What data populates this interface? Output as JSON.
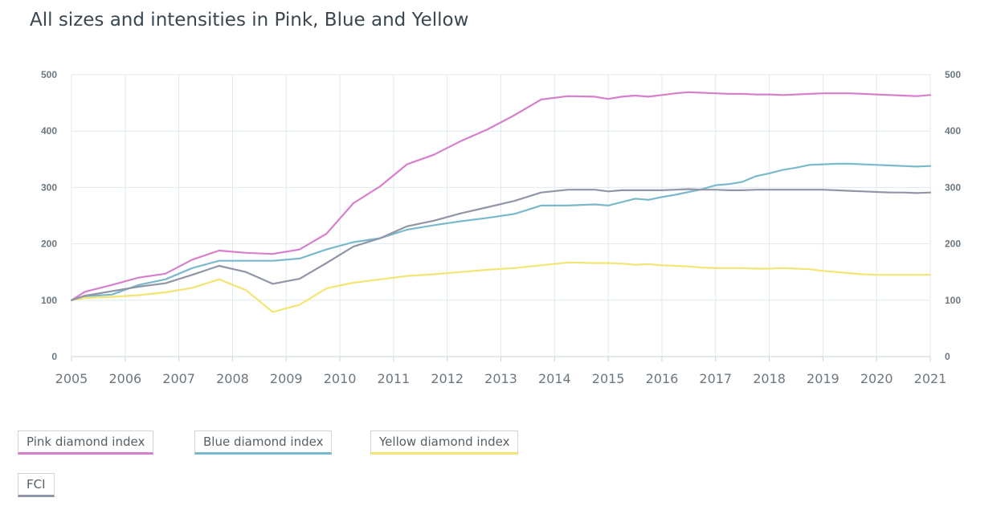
{
  "title": "All sizes and intensities in Pink, Blue and Yellow",
  "chart_data": {
    "type": "line",
    "title": "All sizes and intensities in Pink, Blue and Yellow",
    "xlabel": "",
    "ylabel": "",
    "xlim": [
      2005,
      2021
    ],
    "ylim": [
      0,
      500
    ],
    "x_ticks": [
      "2005",
      "2006",
      "2007",
      "2008",
      "2009",
      "2010",
      "2011",
      "2012",
      "2013",
      "2014",
      "2015",
      "2016",
      "2017",
      "2018",
      "2019",
      "2020",
      "2021"
    ],
    "y_ticks": [
      "0",
      "100",
      "200",
      "300",
      "400",
      "500"
    ],
    "y_axis_right": true,
    "grid": true,
    "legend_position": "bottom-left",
    "series": [
      {
        "name": "Pink diamond index",
        "color": "#d77fcd",
        "x": [
          2005,
          2005.25,
          2005.75,
          2006.25,
          2006.75,
          2007.25,
          2007.75,
          2008.25,
          2008.75,
          2009.25,
          2009.75,
          2010.25,
          2010.75,
          2011.25,
          2011.75,
          2012.25,
          2012.75,
          2013.25,
          2013.75,
          2014.25,
          2014.75,
          2015.0,
          2015.25,
          2015.5,
          2015.75,
          2016.0,
          2016.25,
          2016.5,
          2016.75,
          2017.0,
          2017.25,
          2017.5,
          2017.75,
          2018.0,
          2018.25,
          2018.5,
          2018.75,
          2019.0,
          2019.25,
          2019.5,
          2019.75,
          2020.0,
          2020.25,
          2020.5,
          2020.75,
          2021
        ],
        "values": [
          100,
          115,
          127,
          140,
          147,
          172,
          188,
          184,
          182,
          190,
          218,
          272,
          302,
          341,
          358,
          382,
          403,
          428,
          456,
          462,
          461,
          457,
          461,
          463,
          461,
          464,
          467,
          469,
          468,
          467,
          466,
          466,
          465,
          465,
          464,
          465,
          466,
          467,
          467,
          467,
          466,
          465,
          464,
          463,
          462,
          464
        ]
      },
      {
        "name": "Blue diamond index",
        "color": "#7ab9cc",
        "x": [
          2005,
          2005.25,
          2005.75,
          2006.25,
          2006.75,
          2007.25,
          2007.75,
          2008.25,
          2008.75,
          2009.25,
          2009.75,
          2010.25,
          2010.75,
          2011.25,
          2011.75,
          2012.25,
          2012.75,
          2013.25,
          2013.75,
          2014.25,
          2014.75,
          2015.0,
          2015.25,
          2015.5,
          2015.75,
          2016.0,
          2016.25,
          2016.5,
          2016.75,
          2017.0,
          2017.25,
          2017.5,
          2017.75,
          2018.0,
          2018.25,
          2018.5,
          2018.75,
          2019.0,
          2019.25,
          2019.5,
          2019.75,
          2020.0,
          2020.25,
          2020.5,
          2020.75,
          2021
        ],
        "values": [
          100,
          107,
          110,
          127,
          137,
          157,
          170,
          170,
          170,
          174,
          190,
          203,
          210,
          225,
          233,
          240,
          246,
          253,
          268,
          268,
          270,
          268,
          274,
          280,
          278,
          283,
          287,
          292,
          297,
          304,
          306,
          310,
          320,
          325,
          331,
          335,
          340,
          341,
          342,
          342,
          341,
          340,
          339,
          338,
          337,
          338
        ]
      },
      {
        "name": "Yellow diamond index",
        "color": "#f3e572",
        "x": [
          2005,
          2005.25,
          2005.75,
          2006.25,
          2006.75,
          2007.25,
          2007.75,
          2008.25,
          2008.75,
          2009.25,
          2009.75,
          2010.25,
          2010.75,
          2011.25,
          2011.75,
          2012.25,
          2012.75,
          2013.25,
          2013.75,
          2014.25,
          2014.75,
          2015.0,
          2015.25,
          2015.5,
          2015.75,
          2016.0,
          2016.25,
          2016.5,
          2016.75,
          2017.0,
          2017.25,
          2017.5,
          2017.75,
          2018.0,
          2018.25,
          2018.5,
          2018.75,
          2019.0,
          2019.25,
          2019.5,
          2019.75,
          2020.0,
          2020.25,
          2020.5,
          2020.75,
          2021
        ],
        "values": [
          100,
          104,
          106,
          109,
          114,
          122,
          137,
          118,
          79,
          92,
          121,
          131,
          137,
          143,
          146,
          150,
          154,
          157,
          162,
          167,
          166,
          166,
          165,
          163,
          164,
          162,
          161,
          160,
          158,
          157,
          157,
          157,
          156,
          156,
          157,
          156,
          155,
          152,
          150,
          148,
          146,
          145,
          145,
          145,
          145,
          145
        ]
      },
      {
        "name": "FCI",
        "color": "#9096a6",
        "x": [
          2005,
          2005.25,
          2005.75,
          2006.25,
          2006.75,
          2007.25,
          2007.75,
          2008.25,
          2008.75,
          2009.25,
          2009.75,
          2010.25,
          2010.75,
          2011.25,
          2011.75,
          2012.25,
          2012.75,
          2013.25,
          2013.75,
          2014.25,
          2014.75,
          2015.0,
          2015.25,
          2015.5,
          2015.75,
          2016.0,
          2016.25,
          2016.5,
          2016.75,
          2017.0,
          2017.25,
          2017.5,
          2017.75,
          2018.0,
          2018.25,
          2018.5,
          2018.75,
          2019.0,
          2019.25,
          2019.5,
          2019.75,
          2020.0,
          2020.25,
          2020.5,
          2020.75,
          2021
        ],
        "values": [
          100,
          108,
          116,
          124,
          130,
          145,
          161,
          150,
          129,
          138,
          166,
          195,
          210,
          231,
          241,
          254,
          265,
          276,
          291,
          296,
          296,
          293,
          295,
          295,
          295,
          295,
          296,
          297,
          296,
          296,
          295,
          295,
          296,
          296,
          296,
          296,
          296,
          296,
          295,
          294,
          293,
          292,
          291,
          291,
          290,
          291
        ]
      }
    ]
  },
  "legend": [
    {
      "label": "Pink diamond index"
    },
    {
      "label": "Blue diamond index"
    },
    {
      "label": "Yellow diamond index"
    },
    {
      "label": "FCI"
    }
  ]
}
